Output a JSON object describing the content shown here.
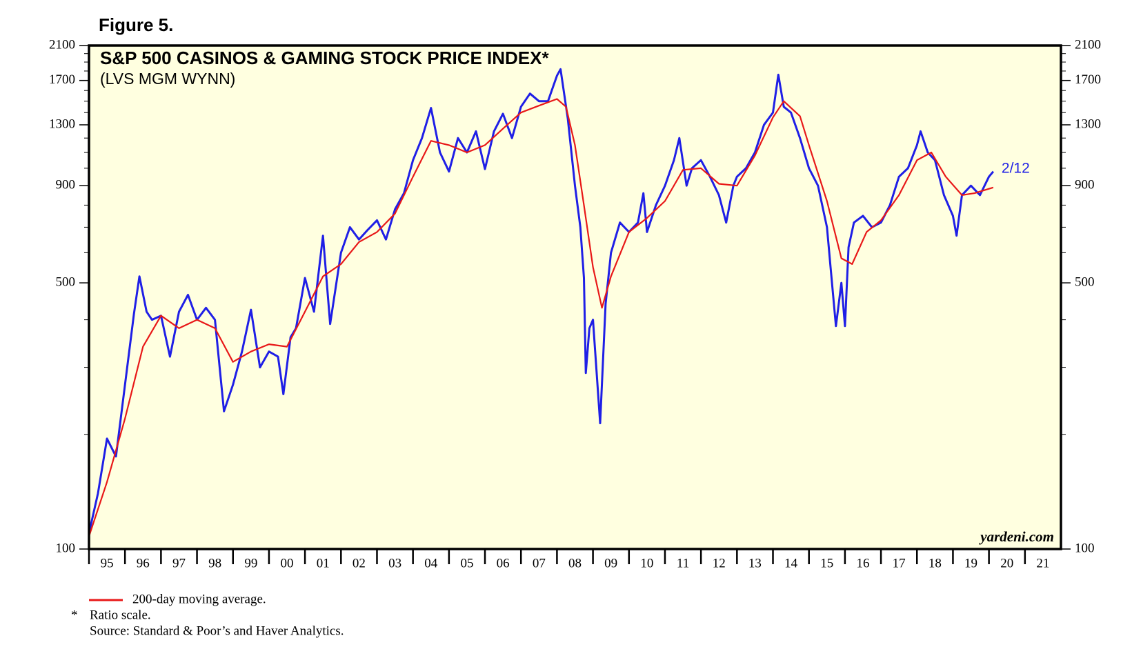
{
  "chart_data": {
    "type": "line",
    "figure_label": "Figure 5.",
    "title": "S&P 500 CASINOS & GAMING STOCK PRICE INDEX*",
    "subtitle": "(LVS MGM WYNN)",
    "watermark": "yardeni.com",
    "log_scale": true,
    "ylim": [
      100,
      2100
    ],
    "yticks": [
      100,
      500,
      900,
      1300,
      1700,
      2100
    ],
    "yminorticks": [
      200,
      300,
      400,
      600,
      700,
      800,
      1000,
      1100,
      1200,
      1400,
      1500,
      1600,
      1800,
      1900,
      2000
    ],
    "xlim": [
      1995,
      2022
    ],
    "xticks": [
      {
        "value": 1995,
        "label": "95"
      },
      {
        "value": 1996,
        "label": "96"
      },
      {
        "value": 1997,
        "label": "97"
      },
      {
        "value": 1998,
        "label": "98"
      },
      {
        "value": 1999,
        "label": "99"
      },
      {
        "value": 2000,
        "label": "00"
      },
      {
        "value": 2001,
        "label": "01"
      },
      {
        "value": 2002,
        "label": "02"
      },
      {
        "value": 2003,
        "label": "03"
      },
      {
        "value": 2004,
        "label": "04"
      },
      {
        "value": 2005,
        "label": "05"
      },
      {
        "value": 2006,
        "label": "06"
      },
      {
        "value": 2007,
        "label": "07"
      },
      {
        "value": 2008,
        "label": "08"
      },
      {
        "value": 2009,
        "label": "09"
      },
      {
        "value": 2010,
        "label": "10"
      },
      {
        "value": 2011,
        "label": "11"
      },
      {
        "value": 2012,
        "label": "12"
      },
      {
        "value": 2013,
        "label": "13"
      },
      {
        "value": 2014,
        "label": "14"
      },
      {
        "value": 2015,
        "label": "15"
      },
      {
        "value": 2016,
        "label": "16"
      },
      {
        "value": 2017,
        "label": "17"
      },
      {
        "value": 2018,
        "label": "18"
      },
      {
        "value": 2019,
        "label": "19"
      },
      {
        "value": 2020,
        "label": "20"
      },
      {
        "value": 2021,
        "label": "21"
      }
    ],
    "series": [
      {
        "color": "#1f1fe6",
        "end_label": "2/12",
        "x": [
          1995.0,
          1995.25,
          1995.5,
          1995.75,
          1996.0,
          1996.25,
          1996.4,
          1996.6,
          1996.75,
          1997.0,
          1997.25,
          1997.5,
          1997.75,
          1998.0,
          1998.25,
          1998.5,
          1998.75,
          1999.0,
          1999.25,
          1999.5,
          1999.75,
          2000.0,
          2000.25,
          2000.4,
          2000.6,
          2000.75,
          2001.0,
          2001.25,
          2001.5,
          2001.7,
          2002.0,
          2002.25,
          2002.5,
          2002.75,
          2003.0,
          2003.25,
          2003.5,
          2003.75,
          2004.0,
          2004.25,
          2004.5,
          2004.75,
          2005.0,
          2005.25,
          2005.5,
          2005.75,
          2006.0,
          2006.25,
          2006.5,
          2006.75,
          2007.0,
          2007.25,
          2007.5,
          2007.75,
          2008.0,
          2008.1,
          2008.3,
          2008.5,
          2008.65,
          2008.75,
          2008.8,
          2008.9,
          2009.0,
          2009.2,
          2009.35,
          2009.5,
          2009.75,
          2010.0,
          2010.25,
          2010.4,
          2010.5,
          2010.75,
          2011.0,
          2011.25,
          2011.4,
          2011.6,
          2011.75,
          2012.0,
          2012.25,
          2012.5,
          2012.7,
          2012.9,
          2013.0,
          2013.25,
          2013.5,
          2013.75,
          2014.0,
          2014.15,
          2014.3,
          2014.5,
          2014.75,
          2015.0,
          2015.25,
          2015.5,
          2015.6,
          2015.75,
          2015.9,
          2016.0,
          2016.1,
          2016.25,
          2016.5,
          2016.75,
          2017.0,
          2017.25,
          2017.5,
          2017.75,
          2018.0,
          2018.1,
          2018.3,
          2018.5,
          2018.75,
          2019.0,
          2019.1,
          2019.25,
          2019.5,
          2019.75,
          2020.0,
          2020.12
        ],
        "values": [
          110,
          140,
          195,
          175,
          270,
          415,
          520,
          420,
          400,
          410,
          320,
          420,
          465,
          400,
          430,
          400,
          230,
          270,
          330,
          425,
          300,
          330,
          320,
          255,
          360,
          380,
          515,
          420,
          665,
          390,
          600,
          700,
          650,
          690,
          730,
          650,
          780,
          860,
          1050,
          1200,
          1440,
          1100,
          980,
          1200,
          1100,
          1250,
          995,
          1250,
          1390,
          1200,
          1450,
          1570,
          1500,
          1500,
          1750,
          1820,
          1350,
          900,
          700,
          515,
          290,
          380,
          400,
          214,
          440,
          600,
          720,
          680,
          720,
          860,
          680,
          800,
          900,
          1050,
          1200,
          900,
          1000,
          1050,
          950,
          850,
          720,
          900,
          950,
          1000,
          1100,
          1300,
          1400,
          1760,
          1450,
          1400,
          1200,
          1000,
          900,
          700,
          550,
          385,
          500,
          385,
          620,
          720,
          750,
          700,
          720,
          800,
          950,
          1000,
          1150,
          1250,
          1100,
          1050,
          850,
          750,
          665,
          850,
          900,
          850,
          950,
          980
        ]
      },
      {
        "name": "200-day moving average.",
        "color": "#e81818",
        "x": [
          1995.0,
          1995.5,
          1996.0,
          1996.5,
          1997.0,
          1997.5,
          1998.0,
          1998.5,
          1999.0,
          1999.5,
          2000.0,
          2000.5,
          2001.0,
          2001.5,
          2002.0,
          2002.5,
          2003.0,
          2003.5,
          2004.0,
          2004.5,
          2005.0,
          2005.5,
          2006.0,
          2006.5,
          2007.0,
          2007.5,
          2008.0,
          2008.25,
          2008.5,
          2008.75,
          2009.0,
          2009.25,
          2009.5,
          2010.0,
          2010.5,
          2011.0,
          2011.5,
          2012.0,
          2012.5,
          2013.0,
          2013.5,
          2014.0,
          2014.3,
          2014.75,
          2015.0,
          2015.5,
          2015.9,
          2016.2,
          2016.6,
          2017.0,
          2017.5,
          2018.0,
          2018.4,
          2018.8,
          2019.25,
          2019.6,
          2020.12
        ],
        "values": [
          108,
          150,
          220,
          340,
          410,
          380,
          400,
          380,
          310,
          330,
          345,
          340,
          420,
          520,
          560,
          640,
          680,
          760,
          950,
          1180,
          1150,
          1100,
          1150,
          1270,
          1400,
          1460,
          1520,
          1450,
          1150,
          800,
          550,
          430,
          520,
          680,
          740,
          820,
          990,
          1000,
          910,
          900,
          1080,
          1360,
          1500,
          1370,
          1150,
          820,
          580,
          560,
          680,
          730,
          850,
          1050,
          1100,
          950,
          850,
          860,
          890
        ]
      }
    ],
    "notes": [
      {
        "marker": "*",
        "text": "Ratio scale."
      }
    ],
    "source": "Source: Standard & Poor’s and Haver Analytics."
  }
}
